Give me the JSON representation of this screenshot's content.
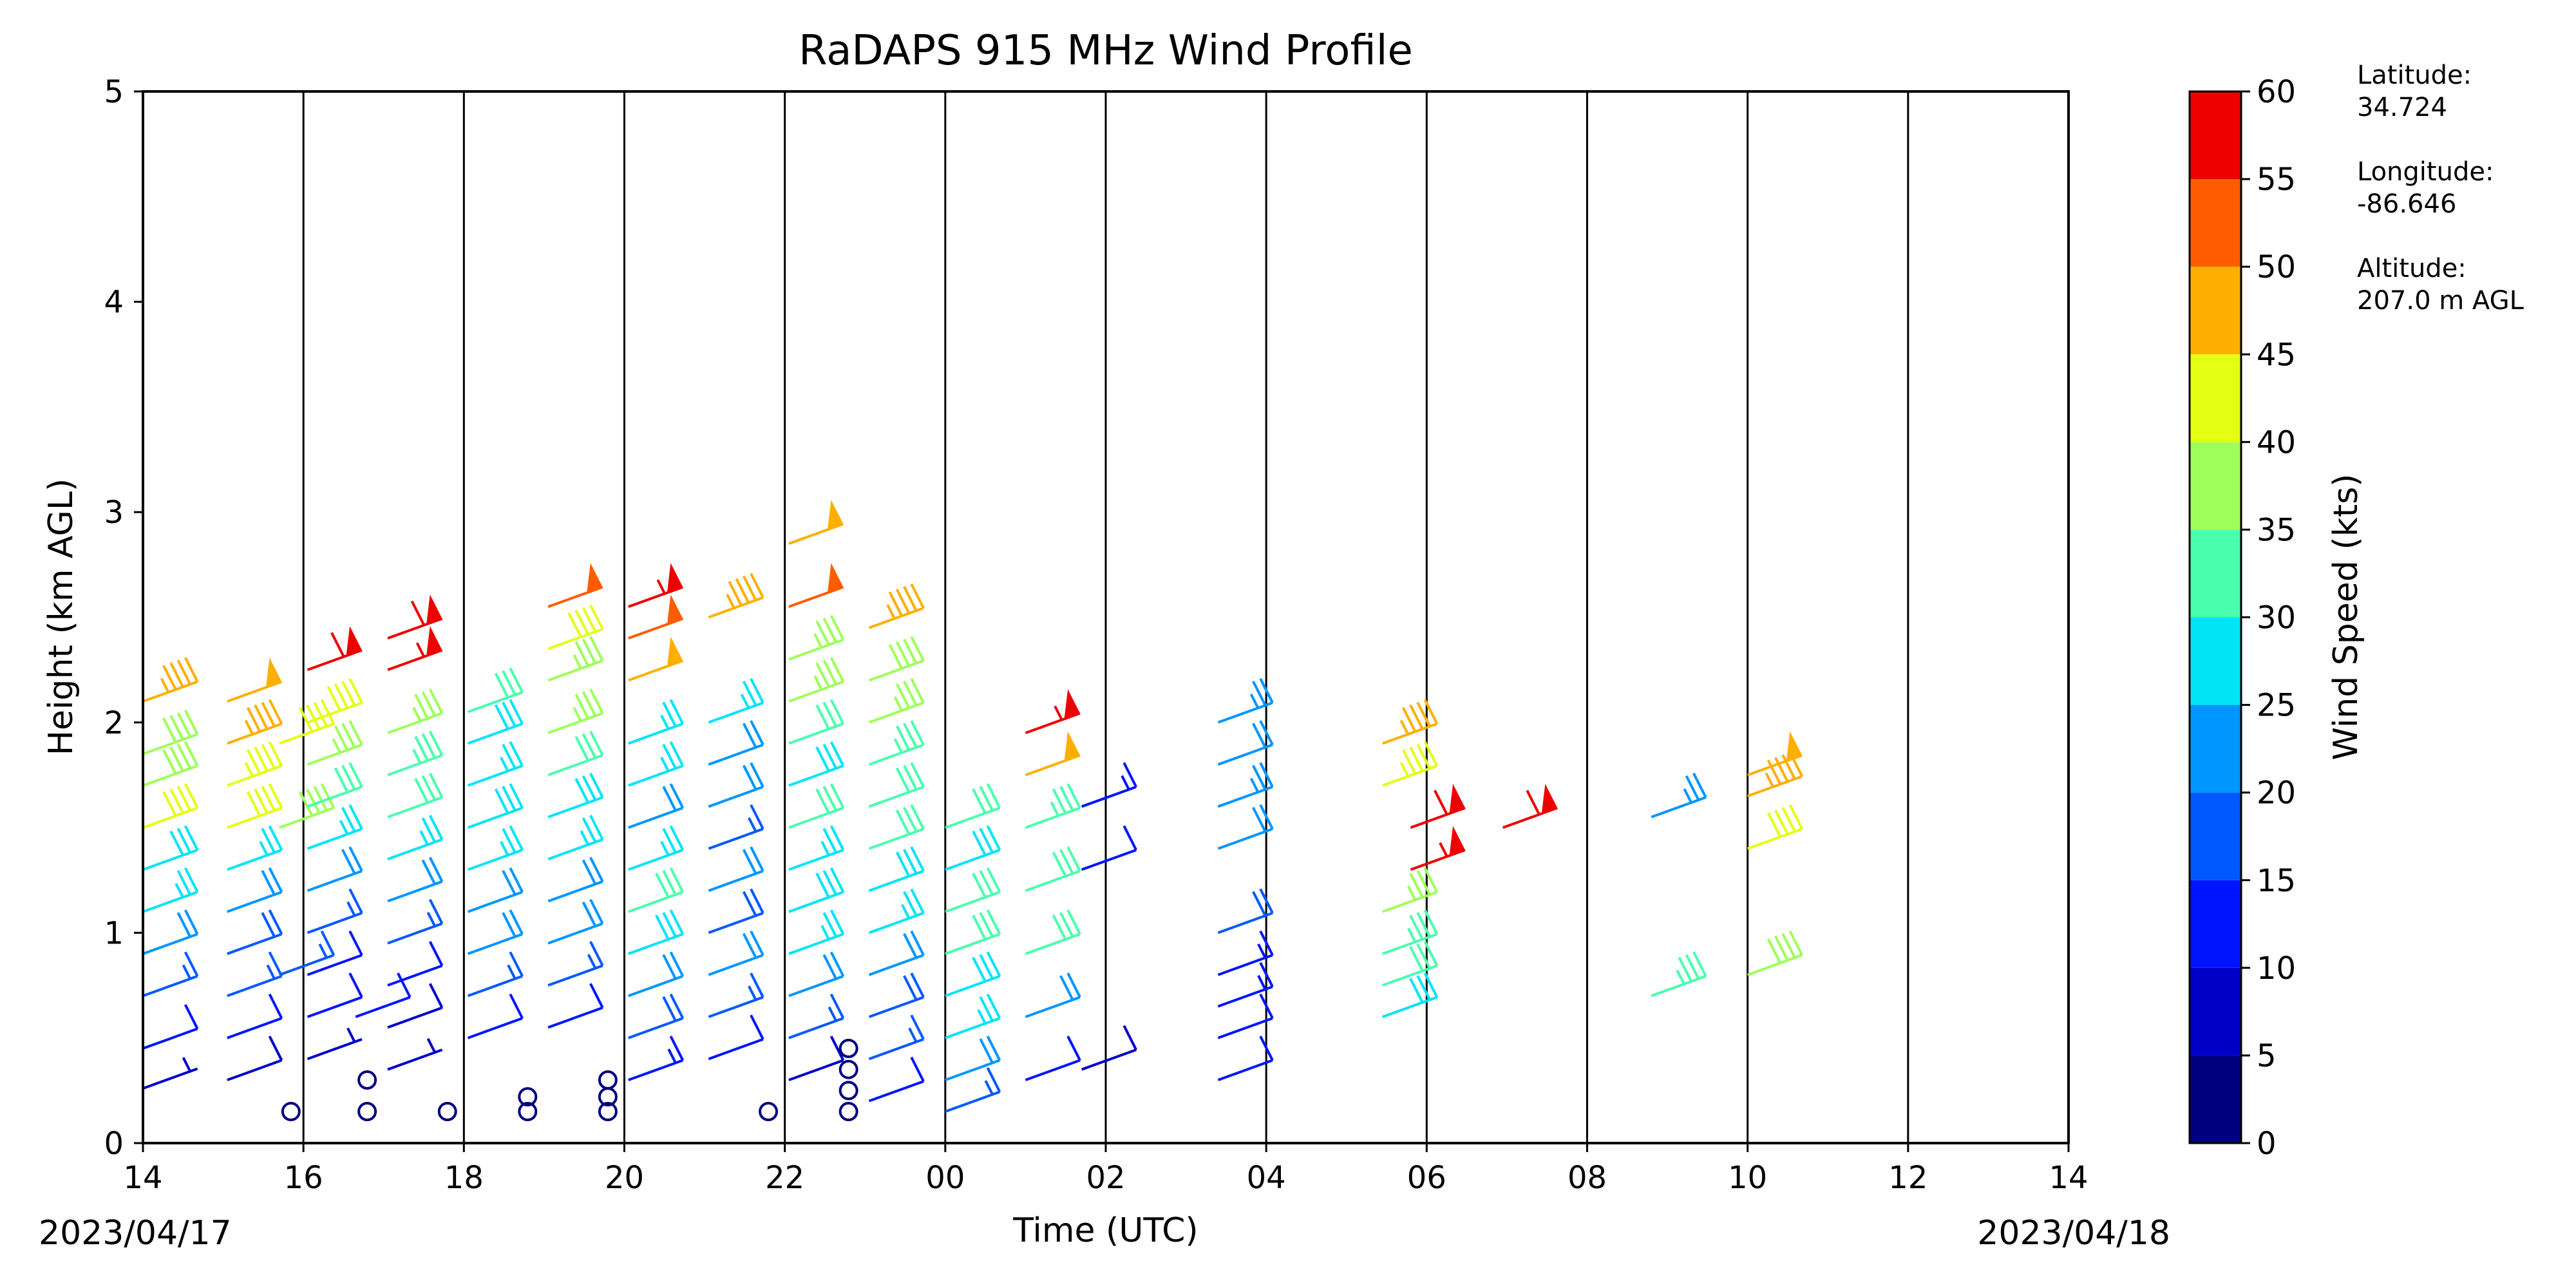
{
  "chart_data": {
    "type": "scatter",
    "title": "RaDAPS 915 MHz Wind Profile",
    "xlabel": "Time (UTC)",
    "ylabel": "Height (km AGL)",
    "x_ticks": [
      "14",
      "16",
      "18",
      "20",
      "22",
      "00",
      "02",
      "04",
      "06",
      "08",
      "10",
      "12",
      "14"
    ],
    "y_ticks": [
      "0",
      "1",
      "2",
      "3",
      "4",
      "5"
    ],
    "xlim_hours": [
      0,
      24
    ],
    "ylim": [
      0,
      5
    ],
    "start_date": "2023/04/17",
    "end_date": "2023/04/18",
    "grid": "vertical lines every 2 hours",
    "colorbar": {
      "label": "Wind Speed (kts)",
      "bounds": [
        0,
        5,
        10,
        15,
        20,
        25,
        30,
        35,
        40,
        45,
        50,
        55,
        60
      ],
      "colors": [
        "#00007f",
        "#0000c8",
        "#0015ff",
        "#0059ff",
        "#0096ff",
        "#00e4f8",
        "#4affad",
        "#9eff59",
        "#e4ff13",
        "#ffaf00",
        "#ff5c00",
        "#ee0000",
        "#7f0000"
      ]
    },
    "site_info": [
      {
        "label": "Latitude:",
        "value": "34.724"
      },
      {
        "label": "Longitude:",
        "value": "-86.646"
      },
      {
        "label": "Altitude:",
        "value": "207.0 m AGL"
      }
    ],
    "profiles": [
      {
        "time": 0.0,
        "levels": [
          [
            0.26,
            7
          ],
          [
            0.45,
            12
          ],
          [
            0.7,
            16
          ],
          [
            0.9,
            20
          ],
          [
            1.1,
            25
          ],
          [
            1.3,
            28
          ],
          [
            1.5,
            40
          ],
          [
            1.7,
            38
          ],
          [
            1.85,
            38
          ],
          [
            2.1,
            47
          ]
        ]
      },
      {
        "time": 1.05,
        "levels": [
          [
            0.3,
            8
          ],
          [
            0.5,
            12
          ],
          [
            0.7,
            15
          ],
          [
            0.9,
            18
          ],
          [
            1.1,
            22
          ],
          [
            1.3,
            25
          ],
          [
            1.5,
            40
          ],
          [
            1.7,
            43
          ],
          [
            1.9,
            45
          ],
          [
            2.1,
            48
          ]
        ]
      },
      {
        "time": 1.7,
        "levels": [
          [
            0.15,
            0
          ],
          [
            0.8,
            15
          ],
          [
            1.5,
            38
          ],
          [
            1.9,
            42
          ]
        ]
      },
      {
        "time": 2.05,
        "levels": [
          [
            0.4,
            6
          ],
          [
            0.6,
            10
          ],
          [
            0.8,
            12
          ],
          [
            1.0,
            15
          ],
          [
            1.2,
            20
          ],
          [
            1.4,
            25
          ],
          [
            1.6,
            30
          ],
          [
            1.8,
            35
          ],
          [
            2.0,
            42
          ],
          [
            2.25,
            58
          ]
        ]
      },
      {
        "time": 2.65,
        "levels": [
          [
            0.15,
            0
          ],
          [
            0.3,
            0
          ],
          [
            0.6,
            10
          ]
        ]
      },
      {
        "time": 3.05,
        "levels": [
          [
            0.35,
            7
          ],
          [
            0.55,
            9
          ],
          [
            0.75,
            12
          ],
          [
            0.95,
            15
          ],
          [
            1.15,
            22
          ],
          [
            1.35,
            25
          ],
          [
            1.55,
            30
          ],
          [
            1.75,
            33
          ],
          [
            1.95,
            35
          ],
          [
            2.25,
            57
          ],
          [
            2.4,
            58
          ]
        ]
      },
      {
        "time": 3.65,
        "levels": [
          [
            0.15,
            0
          ]
        ]
      },
      {
        "time": 4.05,
        "levels": [
          [
            0.5,
            12
          ],
          [
            0.7,
            15
          ],
          [
            0.9,
            20
          ],
          [
            1.1,
            22
          ],
          [
            1.3,
            25
          ],
          [
            1.5,
            28
          ],
          [
            1.7,
            26
          ],
          [
            1.9,
            29
          ],
          [
            2.05,
            30
          ]
        ]
      },
      {
        "time": 4.65,
        "levels": [
          [
            0.15,
            0
          ],
          [
            0.22,
            0
          ]
        ]
      },
      {
        "time": 5.05,
        "levels": [
          [
            0.55,
            10
          ],
          [
            0.75,
            15
          ],
          [
            0.95,
            20
          ],
          [
            1.15,
            22
          ],
          [
            1.35,
            25
          ],
          [
            1.55,
            28
          ],
          [
            1.75,
            30
          ],
          [
            1.95,
            35
          ],
          [
            2.2,
            37
          ],
          [
            2.35,
            42
          ],
          [
            2.55,
            52
          ]
        ]
      },
      {
        "time": 5.65,
        "levels": [
          [
            0.15,
            0
          ],
          [
            0.22,
            0
          ],
          [
            0.3,
            0
          ]
        ]
      },
      {
        "time": 6.05,
        "levels": [
          [
            0.3,
            13
          ],
          [
            0.5,
            18
          ],
          [
            0.7,
            22
          ],
          [
            0.9,
            28
          ],
          [
            1.1,
            32
          ],
          [
            1.3,
            25
          ],
          [
            1.5,
            22
          ],
          [
            1.7,
            27
          ],
          [
            1.9,
            25
          ],
          [
            2.2,
            48
          ],
          [
            2.4,
            52
          ],
          [
            2.55,
            57
          ]
        ]
      },
      {
        "time": 7.05,
        "levels": [
          [
            0.4,
            10
          ],
          [
            0.6,
            15
          ],
          [
            0.8,
            22
          ],
          [
            1.0,
            18
          ],
          [
            1.2,
            20
          ],
          [
            1.4,
            17
          ],
          [
            1.6,
            22
          ],
          [
            1.8,
            20
          ],
          [
            2.0,
            25
          ],
          [
            2.5,
            45
          ]
        ]
      },
      {
        "time": 7.65,
        "levels": [
          [
            0.15,
            0
          ]
        ]
      },
      {
        "time": 8.05,
        "levels": [
          [
            0.3,
            8
          ],
          [
            0.5,
            15
          ],
          [
            0.7,
            20
          ],
          [
            0.9,
            25
          ],
          [
            1.1,
            28
          ],
          [
            1.3,
            25
          ],
          [
            1.5,
            30
          ],
          [
            1.7,
            28
          ],
          [
            1.9,
            32
          ],
          [
            2.1,
            35
          ],
          [
            2.3,
            35
          ],
          [
            2.55,
            52
          ],
          [
            2.85,
            48
          ]
        ]
      },
      {
        "time": 8.65,
        "levels": [
          [
            0.15,
            0
          ],
          [
            0.25,
            0
          ],
          [
            0.35,
            0
          ],
          [
            0.45,
            0
          ]
        ]
      },
      {
        "time": 9.05,
        "levels": [
          [
            0.2,
            10
          ],
          [
            0.4,
            15
          ],
          [
            0.6,
            18
          ],
          [
            0.8,
            22
          ],
          [
            1.0,
            25
          ],
          [
            1.2,
            28
          ],
          [
            1.4,
            30
          ],
          [
            1.6,
            32
          ],
          [
            1.8,
            34
          ],
          [
            2.0,
            35
          ],
          [
            2.2,
            38
          ],
          [
            2.45,
            46
          ]
        ]
      },
      {
        "time": 10.0,
        "levels": [
          [
            0.15,
            15
          ],
          [
            0.3,
            20
          ],
          [
            0.5,
            25
          ],
          [
            0.7,
            28
          ],
          [
            0.9,
            30
          ],
          [
            1.1,
            30
          ],
          [
            1.3,
            28
          ],
          [
            1.5,
            30
          ]
        ]
      },
      {
        "time": 11.0,
        "levels": [
          [
            0.3,
            12
          ],
          [
            0.6,
            20
          ],
          [
            0.9,
            32
          ],
          [
            1.2,
            30
          ],
          [
            1.5,
            33
          ],
          [
            1.75,
            48
          ],
          [
            1.95,
            55
          ]
        ]
      },
      {
        "time": 11.7,
        "levels": [
          [
            0.35,
            8
          ],
          [
            1.3,
            12
          ],
          [
            1.6,
            13
          ]
        ]
      },
      {
        "time": 13.4,
        "levels": [
          [
            0.3,
            10
          ],
          [
            0.5,
            12
          ],
          [
            0.65,
            13
          ],
          [
            0.8,
            14
          ],
          [
            1.0,
            18
          ],
          [
            1.4,
            22
          ],
          [
            1.6,
            23
          ],
          [
            1.8,
            22
          ],
          [
            2.0,
            24
          ]
        ]
      },
      {
        "time": 15.45,
        "levels": [
          [
            0.6,
            28
          ],
          [
            0.75,
            30
          ],
          [
            0.9,
            34
          ],
          [
            1.1,
            36
          ],
          [
            1.7,
            44
          ],
          [
            1.9,
            46
          ]
        ]
      },
      {
        "time": 15.8,
        "levels": [
          [
            1.3,
            57
          ],
          [
            1.5,
            58
          ]
        ]
      },
      {
        "time": 16.95,
        "levels": [
          [
            1.5,
            58
          ]
        ]
      },
      {
        "time": 18.8,
        "levels": [
          [
            0.7,
            33
          ],
          [
            1.55,
            24
          ]
        ]
      },
      {
        "time": 20.0,
        "levels": [
          [
            0.8,
            38
          ],
          [
            1.4,
            40
          ],
          [
            1.65,
            47
          ],
          [
            1.75,
            48
          ]
        ]
      }
    ]
  }
}
